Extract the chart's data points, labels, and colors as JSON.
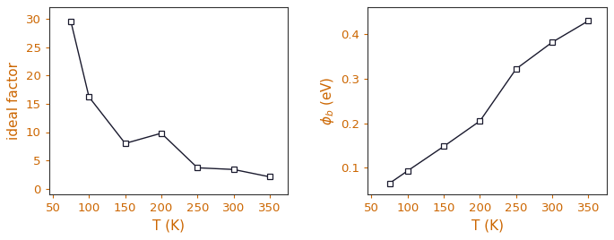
{
  "left_x": [
    75,
    100,
    150,
    200,
    250,
    300,
    350
  ],
  "left_y": [
    29.5,
    16.2,
    8.0,
    9.8,
    3.7,
    3.4,
    2.1
  ],
  "right_x": [
    75,
    100,
    150,
    200,
    250,
    300,
    350
  ],
  "right_y": [
    0.065,
    0.093,
    0.148,
    0.205,
    0.322,
    0.382,
    0.43
  ],
  "left_ylabel": "ideal factor",
  "right_ylabel": "$\\phi_b$ (eV)",
  "xlabel": "T (K)",
  "left_xlim": [
    45,
    375
  ],
  "left_ylim": [
    -1,
    32
  ],
  "right_xlim": [
    45,
    375
  ],
  "right_ylim": [
    0.04,
    0.46
  ],
  "left_yticks": [
    0,
    5,
    10,
    15,
    20,
    25,
    30
  ],
  "right_yticks": [
    0.1,
    0.2,
    0.3,
    0.4
  ],
  "xticks": [
    50,
    100,
    150,
    200,
    250,
    300,
    350
  ],
  "line_color": "#1a1a2e",
  "marker": "s",
  "markersize": 5,
  "marker_facecolor": "white",
  "marker_edgecolor": "#1a1a2e",
  "label_color": "#cc6600",
  "tick_color": "#cc6600",
  "spine_color": "#333333",
  "linewidth": 1.0,
  "label_fontsize": 11,
  "tick_fontsize": 9.5
}
